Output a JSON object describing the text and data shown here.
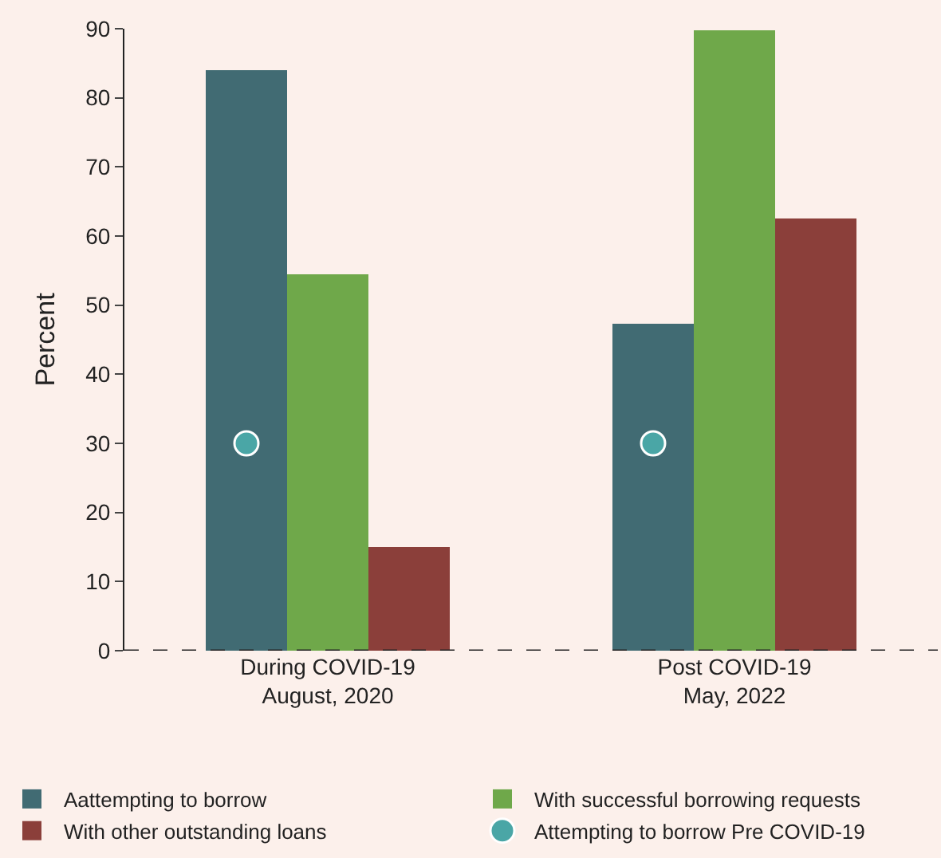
{
  "chart_data": {
    "type": "bar",
    "categories": [
      "During COVID-19\nAugust, 2020",
      "Post COVID-19\nMay, 2022"
    ],
    "ylabel": "Percent",
    "series": [
      {
        "name": "Aattempting to borrow",
        "color": "#416b73",
        "values": [
          84,
          47.4
        ]
      },
      {
        "name": "With successful borrowing requests",
        "color": "#6fa84a",
        "values": [
          54.4,
          89.8
        ]
      },
      {
        "name": "With other outstanding loans",
        "color": "#8b3f3a",
        "values": [
          15.1,
          62.6
        ]
      },
      {
        "name": "Attempting to borrow Pre COVID-19",
        "type": "scatter",
        "color": "#4aa6a6",
        "x": [
          "During COVID-19\nAugust, 2020",
          "Post COVID-19\nMay, 2022"
        ],
        "values": [
          30,
          30
        ]
      }
    ],
    "ylim": [
      0,
      90
    ],
    "yticks": [
      0,
      10,
      20,
      30,
      40,
      50,
      60,
      70,
      80,
      90
    ],
    "grid": false,
    "legend": "bottom",
    "marker": "circle",
    "ref_lines": [
      {
        "axis": "y",
        "value": 0,
        "color": "#222222",
        "line_style": "dashed"
      }
    ]
  }
}
